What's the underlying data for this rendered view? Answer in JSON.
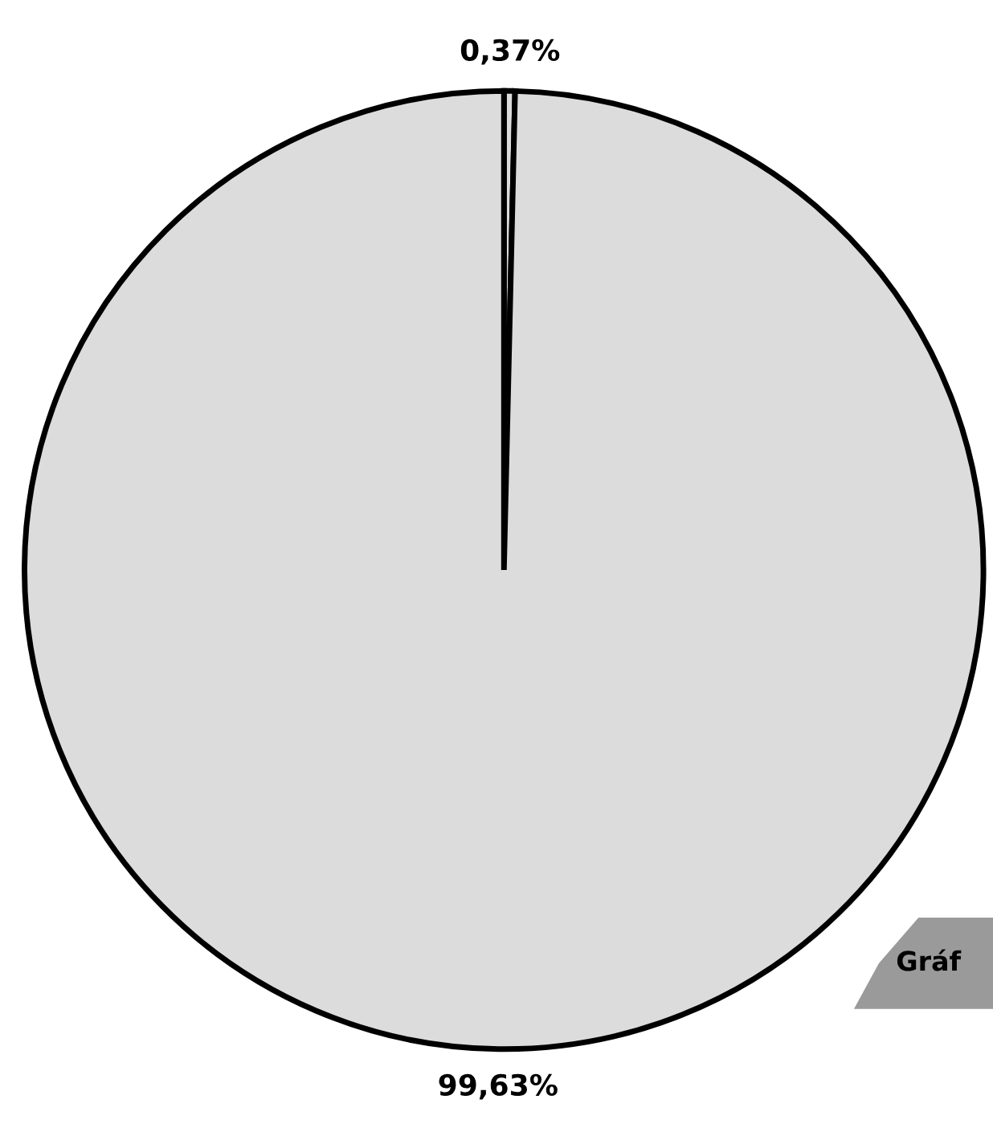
{
  "chart_data": {
    "type": "pie",
    "categories": [
      null,
      null
    ],
    "values": [
      0.37,
      99.63
    ],
    "colors": [
      "#dcdcdc",
      "#dcdcdc"
    ],
    "value_labels": [
      "0,37%",
      "99,63%"
    ],
    "annotations": [
      "Gráf"
    ]
  }
}
